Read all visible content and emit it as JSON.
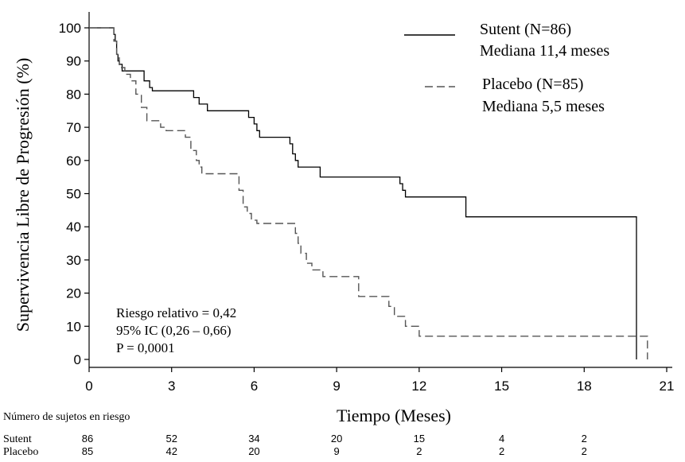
{
  "chart_data": {
    "type": "line",
    "chart_subtype": "kaplan-meier step curve",
    "xlabel": "Tiempo (Meses)",
    "ylabel": "Supervivencia Libre de Progresión (%)",
    "xlim": [
      0,
      21
    ],
    "ylim": [
      0,
      100
    ],
    "xticks": [
      0,
      3,
      6,
      9,
      12,
      15,
      18,
      21
    ],
    "yticks": [
      0,
      10,
      20,
      30,
      40,
      50,
      60,
      70,
      80,
      90,
      100
    ],
    "grid": false,
    "legend_position": "top-right",
    "series": [
      {
        "name": "Sutent (N=86)",
        "median_label": "Mediana 11,4 meses",
        "style": "solid",
        "color": "#000000",
        "points": [
          [
            0,
            100
          ],
          [
            0.85,
            100
          ],
          [
            0.9,
            98
          ],
          [
            0.95,
            96
          ],
          [
            1.0,
            92
          ],
          [
            1.05,
            90
          ],
          [
            1.1,
            89
          ],
          [
            1.2,
            87
          ],
          [
            1.8,
            87
          ],
          [
            2.0,
            84
          ],
          [
            2.2,
            82
          ],
          [
            2.3,
            81
          ],
          [
            3.5,
            81
          ],
          [
            3.8,
            79
          ],
          [
            4.0,
            77
          ],
          [
            4.3,
            75
          ],
          [
            5.5,
            75
          ],
          [
            5.8,
            73
          ],
          [
            6.0,
            71
          ],
          [
            6.1,
            69
          ],
          [
            6.2,
            67
          ],
          [
            7.2,
            67
          ],
          [
            7.3,
            65
          ],
          [
            7.4,
            62
          ],
          [
            7.5,
            60
          ],
          [
            7.6,
            58
          ],
          [
            8.3,
            58
          ],
          [
            8.4,
            55
          ],
          [
            11.2,
            55
          ],
          [
            11.3,
            53
          ],
          [
            11.4,
            51
          ],
          [
            11.5,
            49
          ],
          [
            13.6,
            49
          ],
          [
            13.7,
            43
          ],
          [
            19.9,
            43
          ],
          [
            19.9,
            0
          ]
        ],
        "at_risk": [
          86,
          52,
          34,
          20,
          15,
          4,
          2
        ]
      },
      {
        "name": "Placebo (N=85)",
        "median_label": "Mediana 5,5 meses",
        "style": "dashed",
        "color": "#555555",
        "points": [
          [
            0,
            100
          ],
          [
            0.8,
            100
          ],
          [
            0.9,
            96
          ],
          [
            1.0,
            92
          ],
          [
            1.1,
            88
          ],
          [
            1.3,
            86
          ],
          [
            1.5,
            84
          ],
          [
            1.7,
            80
          ],
          [
            1.9,
            76
          ],
          [
            2.1,
            72
          ],
          [
            2.6,
            70
          ],
          [
            2.8,
            69
          ],
          [
            3.4,
            69
          ],
          [
            3.5,
            67
          ],
          [
            3.7,
            63
          ],
          [
            3.9,
            60
          ],
          [
            4.0,
            58
          ],
          [
            4.1,
            56
          ],
          [
            5.3,
            56
          ],
          [
            5.45,
            51
          ],
          [
            5.6,
            46
          ],
          [
            5.75,
            44
          ],
          [
            5.9,
            42
          ],
          [
            6.1,
            41
          ],
          [
            7.4,
            41
          ],
          [
            7.5,
            38
          ],
          [
            7.6,
            35
          ],
          [
            7.7,
            32
          ],
          [
            7.9,
            29
          ],
          [
            8.1,
            27
          ],
          [
            8.5,
            25
          ],
          [
            9.7,
            25
          ],
          [
            9.8,
            19
          ],
          [
            10.8,
            19
          ],
          [
            10.9,
            16
          ],
          [
            11.1,
            13
          ],
          [
            11.5,
            10
          ],
          [
            12.0,
            7
          ],
          [
            20.3,
            7
          ],
          [
            20.3,
            0
          ]
        ],
        "at_risk": [
          85,
          42,
          20,
          9,
          2,
          2,
          2
        ]
      }
    ],
    "annotations": [
      "Riesgo relativo = 0,42",
      "95% IC (0,26 – 0,66)",
      "P = 0,0001"
    ],
    "at_risk_table": {
      "title": "Número de sujetos en riesgo",
      "times": [
        0,
        3,
        6,
        9,
        12,
        15,
        18
      ]
    }
  }
}
